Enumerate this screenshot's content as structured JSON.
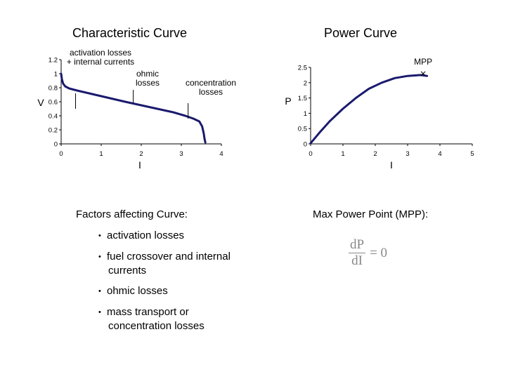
{
  "chart_data": [
    {
      "type": "line",
      "title": "Characteristic Curve",
      "xlabel": "I",
      "ylabel": "V",
      "xlim": [
        0,
        4
      ],
      "ylim": [
        0,
        1.2
      ],
      "x_ticks": [
        "0",
        "1",
        "2",
        "3",
        "4"
      ],
      "y_ticks": [
        "0",
        "0.2",
        "0.4",
        "0.6",
        "0.8",
        "1",
        "1.2"
      ],
      "grid": false,
      "series": [
        {
          "color": "#1a1a6e",
          "x": [
            0,
            0.02,
            0.05,
            0.1,
            0.2,
            0.4,
            0.7,
            1.0,
            1.3,
            1.6,
            2.0,
            2.4,
            2.8,
            3.1,
            3.3,
            3.45,
            3.52,
            3.56,
            3.58,
            3.6
          ],
          "y": [
            1.0,
            0.92,
            0.86,
            0.82,
            0.79,
            0.76,
            0.72,
            0.68,
            0.64,
            0.6,
            0.55,
            0.5,
            0.45,
            0.4,
            0.36,
            0.32,
            0.25,
            0.15,
            0.07,
            0.02
          ]
        }
      ],
      "annotations": [
        {
          "text": "activation losses",
          "text2": "+ internal currents",
          "x": 0.36,
          "y": 0.5
        },
        {
          "text": "ohmic",
          "text2": "losses",
          "x": 1.8,
          "y": 0.58
        },
        {
          "text": "concentration",
          "text2": "losses",
          "x": 3.17,
          "y": 0.36
        }
      ]
    },
    {
      "type": "line",
      "title": "Power Curve",
      "xlabel": "I",
      "ylabel": "P",
      "xlim": [
        0,
        5
      ],
      "ylim": [
        0,
        2.5
      ],
      "x_ticks": [
        "0",
        "1",
        "2",
        "3",
        "4",
        "5"
      ],
      "y_ticks": [
        "0",
        "0.5",
        "1",
        "1.5",
        "2",
        "2.5"
      ],
      "grid": false,
      "series": [
        {
          "color": "#1a1a6e",
          "x": [
            0,
            0.3,
            0.6,
            1.0,
            1.4,
            1.8,
            2.2,
            2.6,
            3.0,
            3.4,
            3.6
          ],
          "y": [
            0.02,
            0.4,
            0.75,
            1.15,
            1.5,
            1.8,
            2.0,
            2.15,
            2.22,
            2.25,
            2.22
          ]
        }
      ],
      "mpp": {
        "label": "MPP",
        "marker": "x",
        "x": 3.35,
        "y": 2.25
      }
    }
  ],
  "factors": {
    "heading_bold": "Factors affecting Curve",
    "heading_rest": ":",
    "items": [
      "activation losses",
      "fuel crossover and internal currents",
      "ohmic losses",
      "mass transport or concentration losses"
    ]
  },
  "mpp_section": {
    "heading": "Max Power Point (MPP):",
    "numerator": "dP",
    "denominator": "dI",
    "equals": "= 0"
  }
}
